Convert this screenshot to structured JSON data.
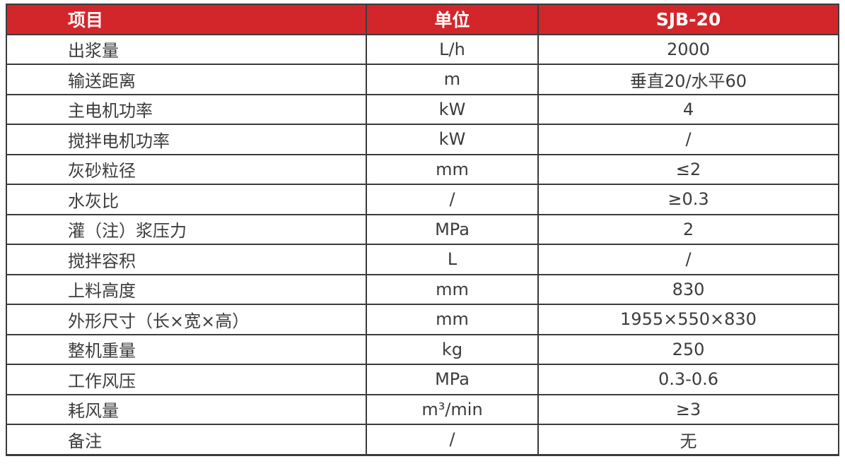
{
  "colors": {
    "header_bg": "#d3262b",
    "header_text": "#ffffff",
    "border": "#3b3b3b",
    "body_text": "#3c3c3c",
    "body_bg": "#ffffff"
  },
  "table": {
    "header": {
      "item": "项目",
      "unit": "单位",
      "model": "SJB-20"
    },
    "rows": [
      {
        "label": "出浆量",
        "unit": "L/h",
        "value": "2000"
      },
      {
        "label": "输送距离",
        "unit": "m",
        "value": "垂直20/水平60"
      },
      {
        "label": "主电机功率",
        "unit": "kW",
        "value": "4"
      },
      {
        "label": "搅拌电机功率",
        "unit": "kW",
        "value": "/"
      },
      {
        "label": "灰砂粒径",
        "unit": "mm",
        "value": "≤2"
      },
      {
        "label": "水灰比",
        "unit": "/",
        "value": "≥0.3"
      },
      {
        "label": "灌（注）浆压力",
        "unit": "MPa",
        "value": "2"
      },
      {
        "label": "搅拌容积",
        "unit": "L",
        "value": "/"
      },
      {
        "label": "上料高度",
        "unit": "mm",
        "value": "830"
      },
      {
        "label": "外形尺寸（长×宽×高）",
        "unit": "mm",
        "value": "1955×550×830"
      },
      {
        "label": "整机重量",
        "unit": "kg",
        "value": "250"
      },
      {
        "label": "工作风压",
        "unit": "MPa",
        "value": "0.3-0.6"
      },
      {
        "label": "耗风量",
        "unit": "m³/min",
        "value": "≥3"
      },
      {
        "label": "备注",
        "unit": "/",
        "value": "无"
      }
    ]
  }
}
